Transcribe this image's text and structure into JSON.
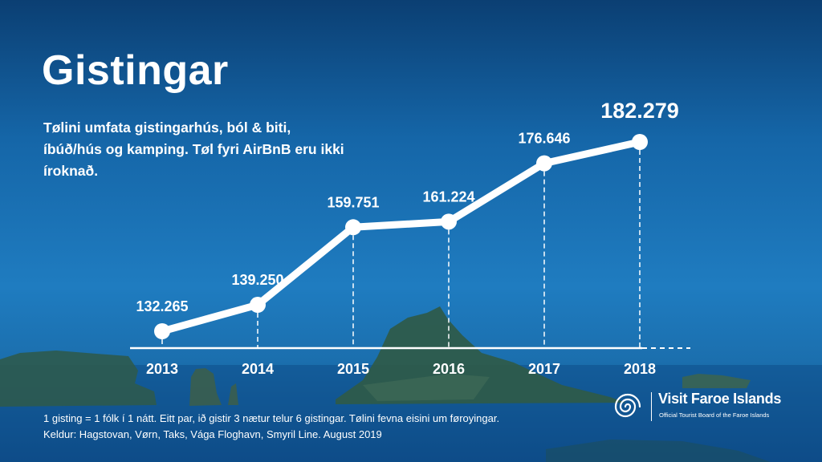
{
  "slide": {
    "title": "Gistingar",
    "subtitle": "Tølini umfata gistingarhús, ból & biti, íbúð/hús og kamping. Tøl fyri AirBnB eru ikki íroknað.",
    "footnote_line1": "1 gisting = 1 fólk í 1 nátt. Eitt par, ið gistir 3 nætur telur 6 gistingar. Tølini fevna eisini um føroyingar.",
    "footnote_line2": "Keldur: Hagstovan, Vørn, Taks, Vága Floghavn, Smyril Line. August 2019",
    "logo_name": "Visit Faroe Islands",
    "logo_tagline": "Official Tourist Board of the Faroe Islands"
  },
  "colors": {
    "line": "#ffffff",
    "text": "#ffffff",
    "background_top": "#0b3f73",
    "background_mid": "#1f7cc0"
  },
  "chart_data": {
    "type": "line",
    "x": [
      "2013",
      "2014",
      "2015",
      "2016",
      "2017",
      "2018"
    ],
    "values": [
      132265,
      139250,
      159751,
      161224,
      176646,
      182279
    ],
    "labels": [
      "132.265",
      "139.250",
      "159.751",
      "161.224",
      "176.646",
      "182.279"
    ],
    "ylim": [
      122000,
      186000
    ],
    "grid": false,
    "drop_lines": "dashed",
    "axes_visible": {
      "x": true,
      "y": false
    }
  }
}
